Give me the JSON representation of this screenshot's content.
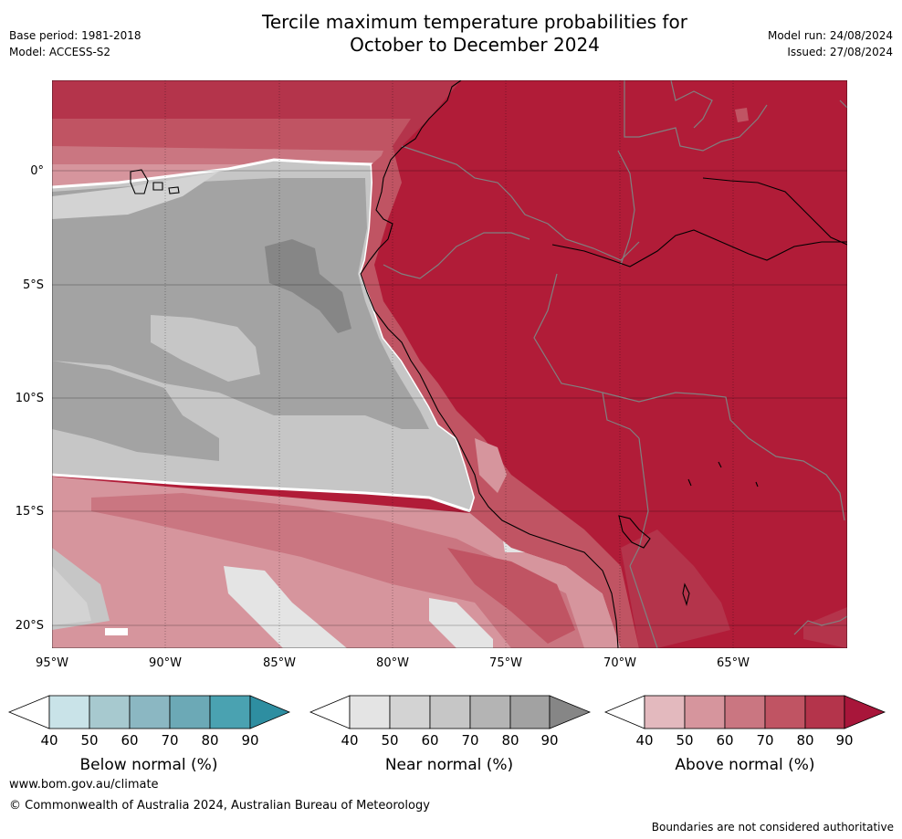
{
  "header": {
    "title_line1": "Tercile maximum temperature probabilities for",
    "title_line2": "October to December 2024",
    "base_period": "Base period: 1981-2018",
    "model": "Model: ACCESS-S2",
    "model_run": "Model run: 24/08/2024",
    "issued": "Issued: 27/08/2024"
  },
  "map": {
    "latitude_labels": [
      "0°",
      "5°S",
      "10°S",
      "15°S",
      "20°S"
    ],
    "longitude_labels": [
      "95°W",
      "90°W",
      "85°W",
      "80°W",
      "75°W",
      "70°W",
      "65°W"
    ],
    "colors": {
      "ocean_near_normal_mid": "#a3a3a3",
      "ocean_near_normal_dark": "#868686",
      "ocean_near_normal_light": "#c6c6c6",
      "above_normal_max": "#b11c38",
      "coastline": "#000000",
      "borders": "#808080"
    }
  },
  "legends": [
    {
      "title": "Below normal (%)",
      "ticks": [
        "40",
        "50",
        "60",
        "70",
        "80",
        "90"
      ],
      "colors": [
        "#ffffff",
        "#c9e3e8",
        "#a7c9cf",
        "#8bb7c2",
        "#6ca9b6",
        "#4aa2b1",
        "#2e8ea1"
      ]
    },
    {
      "title": "Near normal (%)",
      "ticks": [
        "40",
        "50",
        "60",
        "70",
        "80",
        "90"
      ],
      "colors": [
        "#ffffff",
        "#e4e4e4",
        "#d3d3d3",
        "#c6c6c6",
        "#b4b4b4",
        "#a2a2a2",
        "#868686"
      ]
    },
    {
      "title": "Above normal (%)",
      "ticks": [
        "40",
        "50",
        "60",
        "70",
        "80",
        "90"
      ],
      "colors": [
        "#ffffff",
        "#e3b9be",
        "#d6959d",
        "#ca7681",
        "#c05463",
        "#b4344b",
        "#a8163a"
      ]
    }
  ],
  "footer": {
    "url": "www.bom.gov.au/climate",
    "copyright": "© Commonwealth of Australia 2024, Australian Bureau of Meteorology",
    "disclaimer": "Boundaries are not considered authoritative"
  }
}
